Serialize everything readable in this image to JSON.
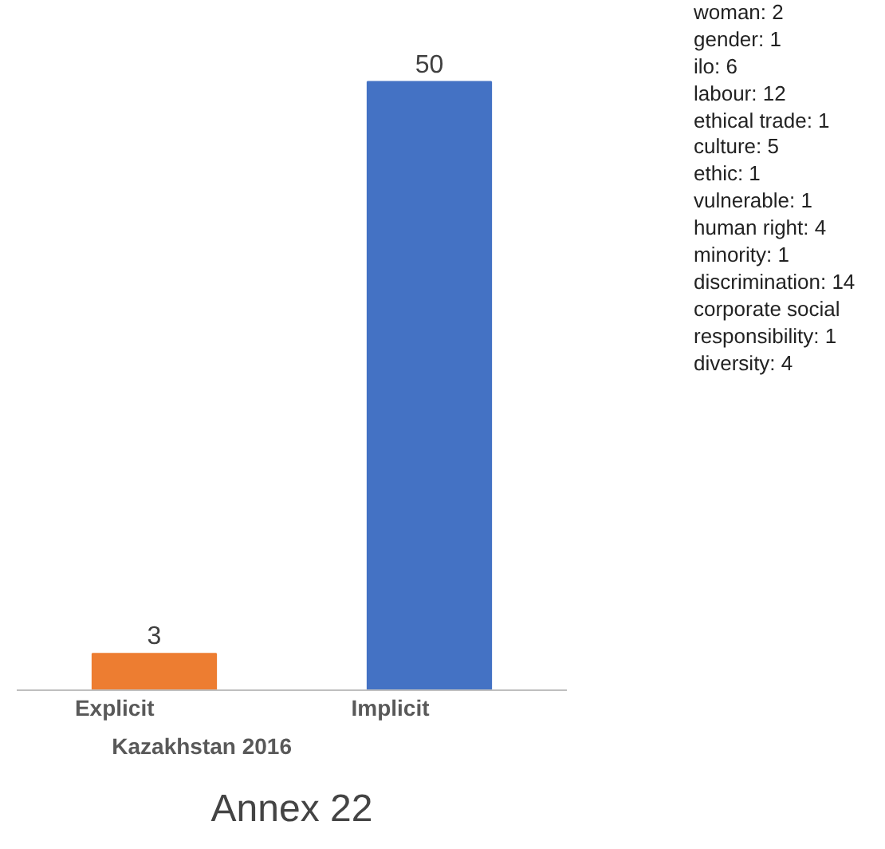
{
  "chart_data": {
    "type": "bar",
    "title": "Annex 22",
    "xlabel": "Kazakhstan 2016",
    "categories": [
      "Explicit",
      "Implicit"
    ],
    "values": [
      3,
      50
    ],
    "colors": [
      "#ed7d31",
      "#4472c4"
    ],
    "data_labels": true,
    "grid": false,
    "annotations": [
      "woman: 2",
      "gender: 1",
      "ilo: 6",
      "labour: 12",
      "ethical trade: 1",
      "culture: 5",
      "ethic: 1",
      "vulnerable: 1",
      "human right: 4",
      "minority: 1",
      "discrimination: 14",
      "corporate social responsibility: 1",
      "diversity: 4"
    ]
  }
}
